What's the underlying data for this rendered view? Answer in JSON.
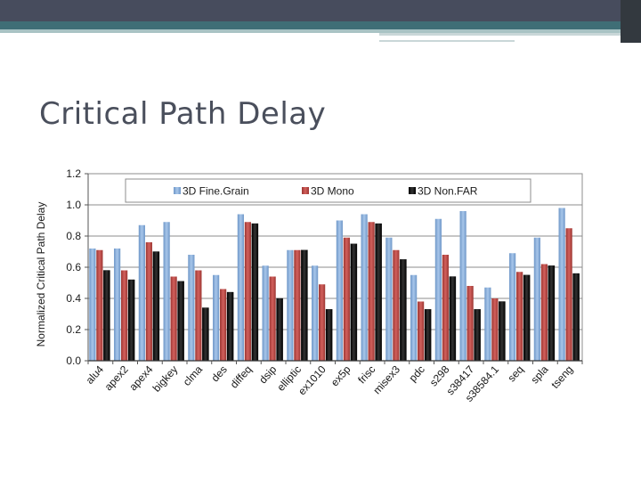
{
  "slide": {
    "title": "Critical Path Delay"
  },
  "chart_data": {
    "type": "bar",
    "title": "",
    "xlabel": "",
    "ylabel": "Normalized Critical Path Delay",
    "ylim": [
      0,
      1.2
    ],
    "yticks": [
      0.0,
      0.2,
      0.4,
      0.6,
      0.8,
      1.0,
      1.2
    ],
    "ytick_labels": [
      "0.0",
      "0.2",
      "0.4",
      "0.6",
      "0.8",
      "1.0",
      "1.2"
    ],
    "grid": true,
    "legend_position": "top",
    "categories": [
      "alu4",
      "apex2",
      "apex4",
      "bigkey",
      "clma",
      "des",
      "diffeq",
      "dsip",
      "elliptic",
      "ex1010",
      "ex5p",
      "frisc",
      "misex3",
      "pdc",
      "s298",
      "s38417",
      "s38584.1",
      "seq",
      "spla",
      "tseng"
    ],
    "series": [
      {
        "name": "3D Fine.Grain",
        "color": "#8fb3df",
        "values": [
          0.72,
          0.72,
          0.87,
          0.89,
          0.68,
          0.55,
          0.94,
          0.61,
          0.71,
          0.61,
          0.9,
          0.94,
          0.79,
          0.55,
          0.91,
          0.96,
          0.47,
          0.69,
          0.79,
          0.98
        ]
      },
      {
        "name": "3D Mono",
        "color": "#c0504d",
        "values": [
          0.71,
          0.58,
          0.76,
          0.54,
          0.58,
          0.46,
          0.89,
          0.54,
          0.71,
          0.49,
          0.79,
          0.89,
          0.71,
          0.38,
          0.68,
          0.48,
          0.4,
          0.57,
          0.62,
          0.85
        ]
      },
      {
        "name": "3D Non.FAR",
        "color": "#1a1a1a",
        "values": [
          0.58,
          0.52,
          0.7,
          0.51,
          0.34,
          0.44,
          0.88,
          0.4,
          0.71,
          0.33,
          0.75,
          0.88,
          0.65,
          0.33,
          0.54,
          0.33,
          0.38,
          0.55,
          0.61,
          0.56
        ]
      }
    ]
  }
}
